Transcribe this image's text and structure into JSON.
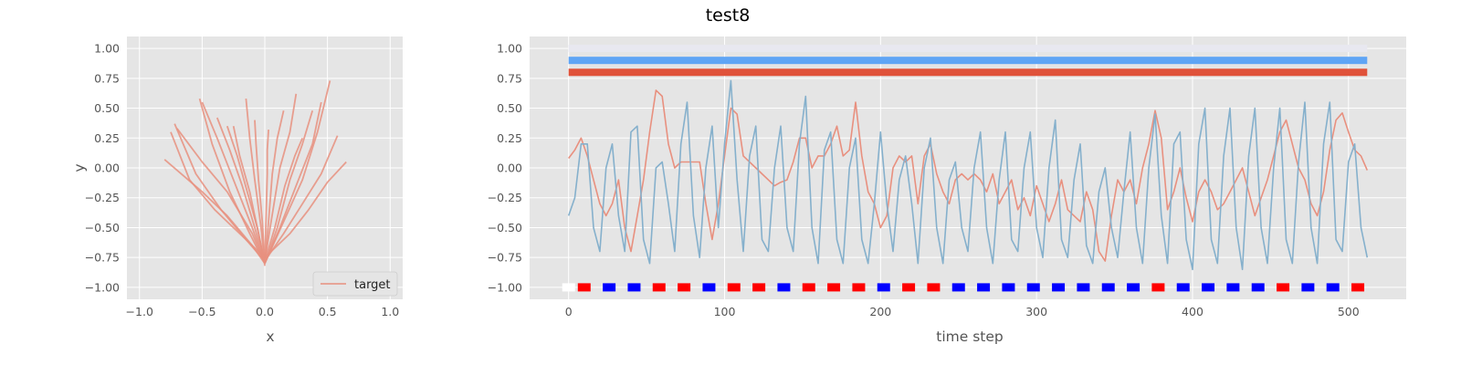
{
  "figure": {
    "suptitle": "test8"
  },
  "colors": {
    "panel_bg": "#e5e5e5",
    "grid": "#ffffff",
    "target_line": "#e8907f",
    "series_red": "#e8907f",
    "series_blue": "#85b0cc",
    "bar_light": "#e8e8f0",
    "bar_blue": "#5fa5f5",
    "bar_red": "#e0523a",
    "square_red": "#ff0000",
    "square_blue": "#0000ff"
  },
  "chart_data": [
    {
      "type": "line",
      "panel": "left",
      "title": "",
      "xlabel": "x",
      "ylabel": "y",
      "xlim": [
        -1.1,
        1.1
      ],
      "ylim": [
        -1.1,
        1.1
      ],
      "xticks": [
        -1.0,
        -0.5,
        0.0,
        0.5,
        1.0
      ],
      "xtick_labels": [
        "−1.0",
        "−0.5",
        "0.0",
        "0.5",
        "1.0"
      ],
      "yticks": [
        -1.0,
        -0.75,
        -0.5,
        -0.25,
        0.0,
        0.25,
        0.5,
        0.75,
        1.0
      ],
      "ytick_labels": [
        "−1.00",
        "−0.75",
        "−0.50",
        "−0.25",
        "0.00",
        "0.25",
        "0.50",
        "0.75",
        "1.00"
      ],
      "grid": true,
      "legend": {
        "position": "lower-right",
        "entries": [
          "target"
        ]
      },
      "series": [
        {
          "name": "target",
          "x": [
            0.0,
            -0.1,
            -0.3,
            -0.5,
            -0.8
          ],
          "y": [
            -0.8,
            -0.65,
            -0.4,
            -0.2,
            0.07
          ]
        },
        {
          "x": [
            0.0,
            -0.15,
            -0.35,
            -0.55,
            -0.72
          ],
          "y": [
            -0.78,
            -0.6,
            -0.35,
            -0.05,
            0.37
          ]
        },
        {
          "x": [
            0.0,
            -0.1,
            -0.3,
            -0.5,
            -0.7
          ],
          "y": [
            -0.8,
            -0.55,
            -0.2,
            0.05,
            0.33
          ]
        },
        {
          "x": [
            0.0,
            -0.12,
            -0.28,
            -0.42,
            -0.52
          ],
          "y": [
            -0.8,
            -0.55,
            -0.2,
            0.2,
            0.58
          ]
        },
        {
          "x": [
            0.0,
            -0.1,
            -0.25,
            -0.38,
            -0.5
          ],
          "y": [
            -0.8,
            -0.5,
            -0.1,
            0.25,
            0.55
          ]
        },
        {
          "x": [
            0.0,
            -0.08,
            -0.18,
            -0.28,
            -0.38
          ],
          "y": [
            -0.8,
            -0.5,
            -0.15,
            0.15,
            0.42
          ]
        },
        {
          "x": [
            0.0,
            -0.05,
            -0.12,
            -0.2,
            -0.25
          ],
          "y": [
            -0.8,
            -0.55,
            -0.2,
            0.1,
            0.35
          ]
        },
        {
          "x": [
            0.0,
            -0.03,
            -0.08,
            -0.12,
            -0.15
          ],
          "y": [
            -0.82,
            -0.5,
            -0.1,
            0.25,
            0.58
          ]
        },
        {
          "x": [
            0.0,
            -0.02,
            -0.05,
            -0.07,
            -0.08
          ],
          "y": [
            -0.8,
            -0.45,
            -0.1,
            0.2,
            0.4
          ]
        },
        {
          "x": [
            0.0,
            0.01,
            0.02,
            0.02,
            0.03
          ],
          "y": [
            -0.8,
            -0.4,
            -0.05,
            0.15,
            0.32
          ]
        },
        {
          "x": [
            0.0,
            0.03,
            0.06,
            0.1,
            0.15
          ],
          "y": [
            -0.8,
            -0.45,
            -0.05,
            0.25,
            0.48
          ]
        },
        {
          "x": [
            0.0,
            0.05,
            0.12,
            0.2,
            0.25
          ],
          "y": [
            -0.78,
            -0.45,
            0.0,
            0.3,
            0.62
          ]
        },
        {
          "x": [
            0.0,
            0.08,
            0.16,
            0.24,
            0.3
          ],
          "y": [
            -0.78,
            -0.5,
            -0.15,
            0.1,
            0.25
          ]
        },
        {
          "x": [
            0.0,
            0.1,
            0.2,
            0.3,
            0.38
          ],
          "y": [
            -0.8,
            -0.5,
            -0.1,
            0.2,
            0.48
          ]
        },
        {
          "x": [
            0.0,
            0.12,
            0.25,
            0.38,
            0.45
          ],
          "y": [
            -0.8,
            -0.5,
            -0.15,
            0.2,
            0.55
          ]
        },
        {
          "x": [
            0.0,
            0.15,
            0.3,
            0.42,
            0.52
          ],
          "y": [
            -0.8,
            -0.45,
            -0.1,
            0.3,
            0.73
          ]
        },
        {
          "x": [
            0.0,
            0.15,
            0.3,
            0.45,
            0.58
          ],
          "y": [
            -0.78,
            -0.55,
            -0.3,
            -0.05,
            0.27
          ]
        },
        {
          "x": [
            0.0,
            0.2,
            0.35,
            0.5,
            0.65
          ],
          "y": [
            -0.75,
            -0.55,
            -0.35,
            -0.12,
            0.05
          ]
        },
        {
          "x": [
            0.0,
            -0.2,
            -0.4,
            -0.6,
            -0.75
          ],
          "y": [
            -0.75,
            -0.55,
            -0.35,
            -0.1,
            0.3
          ]
        },
        {
          "x": [
            0.0,
            -0.06,
            -0.14,
            -0.22,
            -0.3
          ],
          "y": [
            -0.8,
            -0.5,
            -0.2,
            0.1,
            0.35
          ]
        }
      ]
    },
    {
      "type": "line",
      "panel": "right",
      "title": "",
      "xlabel": "time step",
      "ylabel": "",
      "xlim": [
        -25,
        537
      ],
      "ylim": [
        -1.1,
        1.1
      ],
      "xticks": [
        0,
        100,
        200,
        300,
        400,
        500
      ],
      "xtick_labels": [
        "0",
        "100",
        "200",
        "300",
        "400",
        "500"
      ],
      "yticks": [
        -1.0,
        -0.75,
        -0.5,
        -0.25,
        0.0,
        0.25,
        0.5,
        0.75,
        1.0
      ],
      "ytick_labels": [
        "−1.00",
        "−0.75",
        "−0.50",
        "−0.25",
        "0.00",
        "0.25",
        "0.50",
        "0.75",
        "1.00"
      ],
      "grid": true,
      "horizontal_bars": [
        {
          "y": 1.0,
          "x": [
            0,
            512
          ],
          "color": "bar_light"
        },
        {
          "y": 0.9,
          "x": [
            0,
            512
          ],
          "color": "bar_blue"
        },
        {
          "y": 0.8,
          "x": [
            0,
            512
          ],
          "color": "bar_red"
        }
      ],
      "series_red": {
        "x": [
          0,
          4,
          8,
          12,
          16,
          20,
          24,
          28,
          32,
          36,
          40,
          44,
          48,
          52,
          56,
          60,
          64,
          68,
          72,
          76,
          80,
          84,
          88,
          92,
          96,
          100,
          104,
          108,
          112,
          116,
          120,
          124,
          128,
          132,
          136,
          140,
          144,
          148,
          152,
          156,
          160,
          164,
          168,
          172,
          176,
          180,
          184,
          188,
          192,
          196,
          200,
          204,
          208,
          212,
          216,
          220,
          224,
          228,
          232,
          236,
          240,
          244,
          248,
          252,
          256,
          260,
          264,
          268,
          272,
          276,
          280,
          284,
          288,
          292,
          296,
          300,
          304,
          308,
          312,
          316,
          320,
          324,
          328,
          332,
          336,
          340,
          344,
          348,
          352,
          356,
          360,
          364,
          368,
          372,
          376,
          380,
          384,
          388,
          392,
          396,
          400,
          404,
          408,
          412,
          416,
          420,
          424,
          428,
          432,
          436,
          440,
          444,
          448,
          452,
          456,
          460,
          464,
          468,
          472,
          476,
          480,
          484,
          488,
          492,
          496,
          500,
          504,
          508,
          512
        ],
        "y": [
          0.08,
          0.15,
          0.25,
          0.1,
          -0.1,
          -0.3,
          -0.4,
          -0.3,
          -0.1,
          -0.5,
          -0.7,
          -0.4,
          -0.1,
          0.3,
          0.65,
          0.6,
          0.2,
          0.0,
          0.05,
          0.05,
          0.05,
          0.05,
          -0.3,
          -0.6,
          -0.3,
          0.1,
          0.5,
          0.45,
          0.1,
          0.05,
          0.0,
          -0.05,
          -0.1,
          -0.15,
          -0.12,
          -0.1,
          0.05,
          0.25,
          0.25,
          0.0,
          0.1,
          0.1,
          0.2,
          0.35,
          0.1,
          0.15,
          0.55,
          0.1,
          -0.2,
          -0.3,
          -0.5,
          -0.4,
          0.0,
          0.1,
          0.05,
          0.1,
          -0.3,
          0.1,
          0.2,
          -0.05,
          -0.2,
          -0.3,
          -0.1,
          -0.05,
          -0.1,
          -0.05,
          -0.1,
          -0.2,
          -0.05,
          -0.3,
          -0.2,
          -0.1,
          -0.35,
          -0.25,
          -0.4,
          -0.15,
          -0.3,
          -0.45,
          -0.3,
          -0.1,
          -0.35,
          -0.4,
          -0.45,
          -0.2,
          -0.35,
          -0.7,
          -0.78,
          -0.4,
          -0.1,
          -0.2,
          -0.1,
          -0.3,
          0.0,
          0.2,
          0.48,
          0.25,
          -0.35,
          -0.2,
          0.0,
          -0.25,
          -0.45,
          -0.2,
          -0.1,
          -0.2,
          -0.35,
          -0.3,
          -0.2,
          -0.1,
          0.0,
          -0.2,
          -0.4,
          -0.25,
          -0.1,
          0.1,
          0.3,
          0.4,
          0.2,
          0.0,
          -0.1,
          -0.3,
          -0.4,
          -0.2,
          0.15,
          0.4,
          0.46,
          0.3,
          0.15,
          0.1,
          -0.02
        ]
      },
      "series_blue": {
        "x": [
          0,
          4,
          8,
          12,
          16,
          20,
          24,
          28,
          32,
          36,
          40,
          44,
          48,
          52,
          56,
          60,
          64,
          68,
          72,
          76,
          80,
          84,
          88,
          92,
          96,
          100,
          104,
          108,
          112,
          116,
          120,
          124,
          128,
          132,
          136,
          140,
          144,
          148,
          152,
          156,
          160,
          164,
          168,
          172,
          176,
          180,
          184,
          188,
          192,
          196,
          200,
          204,
          208,
          212,
          216,
          220,
          224,
          228,
          232,
          236,
          240,
          244,
          248,
          252,
          256,
          260,
          264,
          268,
          272,
          276,
          280,
          284,
          288,
          292,
          296,
          300,
          304,
          308,
          312,
          316,
          320,
          324,
          328,
          332,
          336,
          340,
          344,
          348,
          352,
          356,
          360,
          364,
          368,
          372,
          376,
          380,
          384,
          388,
          392,
          396,
          400,
          404,
          408,
          412,
          416,
          420,
          424,
          428,
          432,
          436,
          440,
          444,
          448,
          452,
          456,
          460,
          464,
          468,
          472,
          476,
          480,
          484,
          488,
          492,
          496,
          500,
          504,
          508,
          512
        ],
        "y": [
          -0.4,
          -0.25,
          0.2,
          0.2,
          -0.5,
          -0.7,
          0.0,
          0.2,
          -0.4,
          -0.7,
          0.3,
          0.35,
          -0.6,
          -0.8,
          0.0,
          0.05,
          -0.3,
          -0.7,
          0.2,
          0.55,
          -0.4,
          -0.75,
          0.0,
          0.35,
          -0.5,
          0.2,
          0.73,
          -0.1,
          -0.7,
          0.1,
          0.35,
          -0.6,
          -0.7,
          0.0,
          0.35,
          -0.5,
          -0.7,
          0.2,
          0.6,
          -0.5,
          -0.8,
          0.15,
          0.3,
          -0.6,
          -0.8,
          0.0,
          0.25,
          -0.6,
          -0.8,
          -0.3,
          0.3,
          -0.3,
          -0.7,
          -0.1,
          0.1,
          -0.3,
          -0.8,
          0.0,
          0.25,
          -0.5,
          -0.8,
          -0.1,
          0.05,
          -0.5,
          -0.7,
          0.0,
          0.3,
          -0.5,
          -0.8,
          -0.1,
          0.3,
          -0.6,
          -0.7,
          0.0,
          0.3,
          -0.5,
          -0.75,
          0.0,
          0.4,
          -0.6,
          -0.75,
          -0.1,
          0.2,
          -0.65,
          -0.8,
          -0.2,
          0.0,
          -0.5,
          -0.75,
          -0.2,
          0.3,
          -0.5,
          -0.8,
          0.0,
          0.45,
          -0.4,
          -0.8,
          0.2,
          0.3,
          -0.6,
          -0.85,
          0.2,
          0.5,
          -0.6,
          -0.8,
          0.1,
          0.5,
          -0.5,
          -0.85,
          0.1,
          0.5,
          -0.5,
          -0.8,
          0.0,
          0.5,
          -0.6,
          -0.8,
          0.05,
          0.55,
          -0.5,
          -0.8,
          0.2,
          0.55,
          -0.6,
          -0.7,
          0.05,
          0.2,
          -0.5,
          -0.75
        ]
      },
      "squares": {
        "y": -1.0,
        "points": [
          {
            "x": 0,
            "color": "square_white"
          },
          {
            "x": 10,
            "color": "square_red"
          },
          {
            "x": 26,
            "color": "square_blue"
          },
          {
            "x": 42,
            "color": "square_blue"
          },
          {
            "x": 58,
            "color": "square_red"
          },
          {
            "x": 74,
            "color": "square_red"
          },
          {
            "x": 90,
            "color": "square_blue"
          },
          {
            "x": 106,
            "color": "square_red"
          },
          {
            "x": 122,
            "color": "square_red"
          },
          {
            "x": 138,
            "color": "square_blue"
          },
          {
            "x": 154,
            "color": "square_red"
          },
          {
            "x": 170,
            "color": "square_red"
          },
          {
            "x": 186,
            "color": "square_red"
          },
          {
            "x": 202,
            "color": "square_blue"
          },
          {
            "x": 218,
            "color": "square_red"
          },
          {
            "x": 234,
            "color": "square_red"
          },
          {
            "x": 250,
            "color": "square_blue"
          },
          {
            "x": 266,
            "color": "square_blue"
          },
          {
            "x": 282,
            "color": "square_blue"
          },
          {
            "x": 298,
            "color": "square_blue"
          },
          {
            "x": 314,
            "color": "square_blue"
          },
          {
            "x": 330,
            "color": "square_blue"
          },
          {
            "x": 346,
            "color": "square_blue"
          },
          {
            "x": 362,
            "color": "square_blue"
          },
          {
            "x": 378,
            "color": "square_red"
          },
          {
            "x": 394,
            "color": "square_blue"
          },
          {
            "x": 410,
            "color": "square_blue"
          },
          {
            "x": 426,
            "color": "square_blue"
          },
          {
            "x": 442,
            "color": "square_blue"
          },
          {
            "x": 458,
            "color": "square_red"
          },
          {
            "x": 474,
            "color": "square_blue"
          },
          {
            "x": 490,
            "color": "square_blue"
          },
          {
            "x": 506,
            "color": "square_red"
          }
        ]
      }
    }
  ]
}
